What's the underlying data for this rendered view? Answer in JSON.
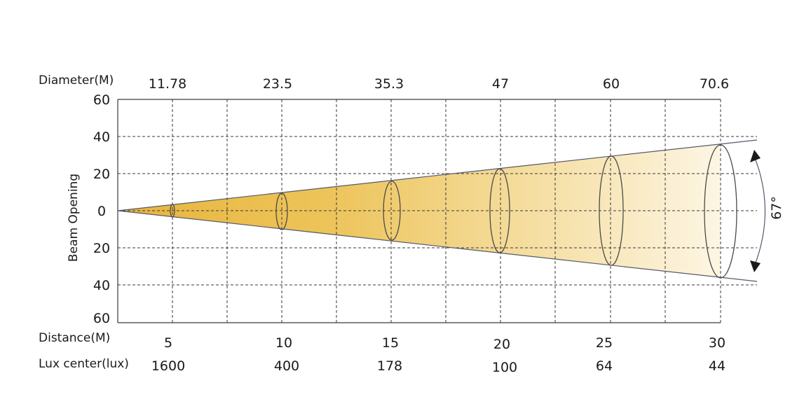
{
  "labels": {
    "diameter": "Diameter(M)",
    "distance": "Distance(M)",
    "lux": "Lux center(lux)",
    "beam_opening": "Beam Opening",
    "angle": "67°"
  },
  "y_ticks": [
    "60",
    "40",
    "20",
    "0",
    "20",
    "40",
    "60"
  ],
  "diameters": [
    "11.78",
    "23.5",
    "35.3",
    "47",
    "60",
    "70.6"
  ],
  "distances": [
    "5",
    "10",
    "15",
    "20",
    "25",
    "30"
  ],
  "lux_values": [
    "1600",
    "400",
    "178",
    "100",
    "64",
    "44"
  ],
  "colors": {
    "beam_start": "#e8b53e",
    "beam_end": "#fdf6e4",
    "lines": "#3a3a3a"
  }
}
